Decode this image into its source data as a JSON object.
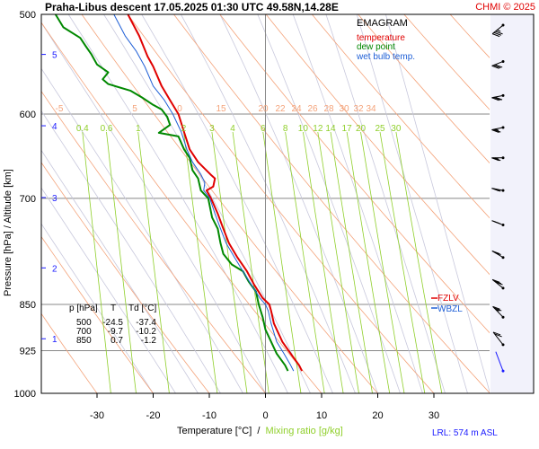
{
  "header": {
    "title": "Praha-Libus   descent   17.05.2025 01:30 UTC  49.58N,14.28E",
    "credit": "CHMI © 2025"
  },
  "legend": {
    "title": "EMAGRAM",
    "items": [
      {
        "label": "temperature",
        "color": "#e00000"
      },
      {
        "label": "dew point",
        "color": "#008800"
      },
      {
        "label": "wet bulb temp.",
        "color": "#1f5fd6"
      }
    ]
  },
  "markers": {
    "fzlv": "FZLV",
    "wbzl": "WBZL"
  },
  "footer": {
    "lrl": "LRL: 574 m ASL"
  },
  "table": {
    "header": [
      "p [hPa]",
      "T",
      "Td [°C]"
    ],
    "rows": [
      [
        "500",
        "-24.5",
        "-37.4"
      ],
      [
        "700",
        "-9.7",
        "-10.2"
      ],
      [
        "850",
        "0.7",
        "-1.2"
      ]
    ]
  },
  "colors": {
    "temperature": "#e00000",
    "dewpoint": "#008800",
    "wetbulb": "#1f5fd6",
    "isotherm": "#888888",
    "mixing": "#8fcf2a",
    "dry_adiabat": "#f4a37a",
    "moist_adiabat": "#c8c8dc",
    "wind": "#000000",
    "plot_bg": "#ffffff",
    "side_bg": "#f2f2fb"
  },
  "chart_data": {
    "type": "line",
    "title": "EMAGRAM",
    "xlabel": "Temperature [°C]",
    "xlabel_sep": "  /  ",
    "xlabel_mix": "Mixing ratio [g/kg]",
    "ylabel": "Pressure [hPa]  /   Altitude [km]",
    "xlim": [
      -38,
      35
    ],
    "ylim": [
      1000,
      500
    ],
    "y_scale": "log",
    "x_ticks": [
      -30,
      -20,
      -10,
      0,
      10,
      20,
      30
    ],
    "p_ticks": [
      500,
      600,
      700,
      850,
      925,
      1000
    ],
    "altitude_ticks": [
      {
        "km": "1",
        "p": 905
      },
      {
        "km": "2",
        "p": 795
      },
      {
        "km": "3",
        "p": 699
      },
      {
        "km": "4",
        "p": 613
      },
      {
        "km": "5",
        "p": 538
      }
    ],
    "dry_adiabat_labels": [
      "-5",
      "5",
      "0",
      "15",
      "20",
      "22",
      "24",
      "26",
      "28",
      "30",
      "32",
      "34"
    ],
    "mixing_ratio_labels": [
      "0.4",
      "0.6",
      "1",
      "2",
      "3",
      "4",
      "6",
      "8",
      "10",
      "12",
      "14",
      "17",
      "20",
      "25",
      "30"
    ],
    "series": [
      {
        "name": "temperature",
        "points": [
          [
            6.5,
            960
          ],
          [
            6,
            950
          ],
          [
            4.5,
            930
          ],
          [
            3,
            910
          ],
          [
            1.5,
            880
          ],
          [
            1,
            860
          ],
          [
            0.7,
            850
          ],
          [
            -0.5,
            840
          ],
          [
            -2,
            820
          ],
          [
            -3.3,
            800
          ],
          [
            -5,
            780
          ],
          [
            -6.5,
            760
          ],
          [
            -7.5,
            740
          ],
          [
            -8.5,
            720
          ],
          [
            -9.7,
            700
          ],
          [
            -10.5,
            690
          ],
          [
            -9.3,
            685
          ],
          [
            -9,
            675
          ],
          [
            -9.8,
            670
          ],
          [
            -12,
            655
          ],
          [
            -13.5,
            640
          ],
          [
            -14.5,
            620
          ],
          [
            -15.5,
            600
          ],
          [
            -17,
            585
          ],
          [
            -18.5,
            570
          ],
          [
            -20,
            550
          ],
          [
            -21,
            540
          ],
          [
            -22.5,
            520
          ],
          [
            -24.5,
            500
          ]
        ]
      },
      {
        "name": "dew point",
        "points": [
          [
            4,
            960
          ],
          [
            3.5,
            950
          ],
          [
            2,
            930
          ],
          [
            1,
            910
          ],
          [
            0,
            890
          ],
          [
            -0.5,
            870
          ],
          [
            -1.2,
            850
          ],
          [
            -1.7,
            830
          ],
          [
            -3,
            815
          ],
          [
            -4,
            800
          ],
          [
            -6,
            790
          ],
          [
            -7.5,
            775
          ],
          [
            -8,
            760
          ],
          [
            -8.5,
            740
          ],
          [
            -9.5,
            725
          ],
          [
            -10.2,
            700
          ],
          [
            -11.5,
            690
          ],
          [
            -12,
            675
          ],
          [
            -13,
            665
          ],
          [
            -13.5,
            650
          ],
          [
            -14.5,
            640
          ],
          [
            -15.5,
            625
          ],
          [
            -19,
            621
          ],
          [
            -17,
            612
          ],
          [
            -17.5,
            603
          ],
          [
            -18.5,
            595
          ],
          [
            -20,
            590
          ],
          [
            -22,
            582
          ],
          [
            -24,
            575
          ],
          [
            -28,
            568
          ],
          [
            -29,
            563
          ],
          [
            -28,
            556
          ],
          [
            -30,
            548
          ],
          [
            -31,
            538
          ],
          [
            -32,
            530
          ],
          [
            -33,
            522
          ],
          [
            -36,
            512
          ],
          [
            -37.4,
            500
          ]
        ]
      },
      {
        "name": "wet bulb temp.",
        "points": [
          [
            5,
            960
          ],
          [
            4.5,
            950
          ],
          [
            3.3,
            930
          ],
          [
            2,
            910
          ],
          [
            1,
            880
          ],
          [
            0.5,
            860
          ],
          [
            0,
            850
          ],
          [
            -1,
            840
          ],
          [
            -2.5,
            820
          ],
          [
            -4,
            800
          ],
          [
            -5.5,
            780
          ],
          [
            -7,
            760
          ],
          [
            -8,
            740
          ],
          [
            -9,
            720
          ],
          [
            -9.9,
            700
          ],
          [
            -11,
            690
          ],
          [
            -10.8,
            680
          ],
          [
            -11.5,
            670
          ],
          [
            -13,
            655
          ],
          [
            -14,
            640
          ],
          [
            -15,
            620
          ],
          [
            -16.5,
            600
          ],
          [
            -18,
            585
          ],
          [
            -20,
            570
          ],
          [
            -21.5,
            550
          ],
          [
            -23,
            535
          ],
          [
            -25,
            520
          ],
          [
            -27,
            500
          ]
        ]
      }
    ],
    "winds": [
      {
        "p": 510,
        "dir": 250,
        "speed_kt": 35
      },
      {
        "p": 545,
        "dir": 260,
        "speed_kt": 30
      },
      {
        "p": 580,
        "dir": 265,
        "speed_kt": 30
      },
      {
        "p": 615,
        "dir": 265,
        "speed_kt": 25
      },
      {
        "p": 650,
        "dir": 270,
        "speed_kt": 25
      },
      {
        "p": 690,
        "dir": 275,
        "speed_kt": 25
      },
      {
        "p": 735,
        "dir": 280,
        "speed_kt": 25
      },
      {
        "p": 780,
        "dir": 285,
        "speed_kt": 25
      },
      {
        "p": 825,
        "dir": 290,
        "speed_kt": 30
      },
      {
        "p": 870,
        "dir": 295,
        "speed_kt": 25
      },
      {
        "p": 915,
        "dir": 300,
        "speed_kt": 20
      },
      {
        "p": 960,
        "dir": 320,
        "speed_kt": 0
      }
    ]
  }
}
